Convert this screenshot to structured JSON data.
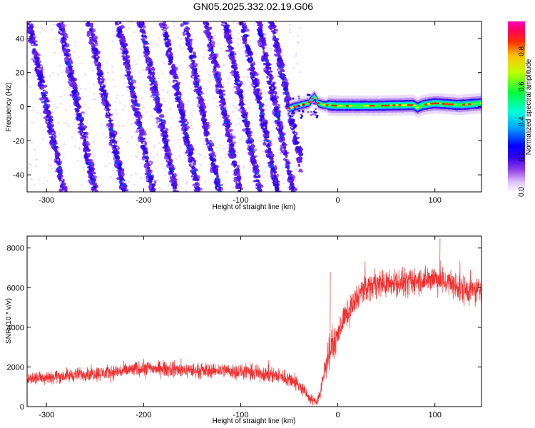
{
  "figure_title": "GN05.2025.332.02.19.G06",
  "chart_data": [
    {
      "id": "spectrogram",
      "type": "heatmap",
      "title": "",
      "xlabel": "Height of straight line (km)",
      "ylabel": "Frequency (Hz)",
      "xlim": [
        -320,
        148
      ],
      "ylim": [
        -50,
        50
      ],
      "xticks": [
        -300,
        -200,
        -100,
        0,
        100
      ],
      "yticks": [
        -40,
        -20,
        0,
        20,
        40
      ],
      "xtick_labels": [
        "-300",
        "-200",
        "-100",
        "0",
        "100"
      ],
      "ytick_labels": [
        "-40",
        "-20",
        "0",
        "20",
        "40"
      ],
      "colorbar": {
        "label": "Normalized spectral amplitude",
        "range": [
          0,
          0.97
        ],
        "ticks": [
          0,
          0.2,
          0.4,
          0.6,
          0.8
        ],
        "tick_labels": [
          "0.0",
          "0.2",
          "0.4",
          "0.6",
          "0.8"
        ],
        "colors": [
          "#ffffff",
          "#dcbdfa",
          "#9040e8",
          "#3800f0",
          "#0000ff",
          "#00d0ff",
          "#00ff40",
          "#e0ff00",
          "#ff2000",
          "#ff00aa"
        ]
      },
      "diagonal_stripes": {
        "description_of_pattern": "slanted interference fringes",
        "x_range": [
          -320,
          -38
        ],
        "slope_km_per_hz": -0.36,
        "stripe_x_at_zero_hz": [
          -300,
          -268,
          -238,
          -208,
          -185,
          -162,
          -140,
          -118,
          -98,
          -80,
          -64,
          -50
        ]
      },
      "direct_signal": {
        "x_range": [
          -50,
          148
        ],
        "center_hz": [
          [
            -50,
            -1
          ],
          [
            -38,
            1
          ],
          [
            -30,
            2
          ],
          [
            -24,
            6
          ],
          [
            -20,
            2
          ],
          [
            -15,
            1
          ],
          [
            0,
            0.5
          ],
          [
            40,
            0.5
          ],
          [
            78,
            1
          ],
          [
            82,
            -0.5
          ],
          [
            88,
            1
          ],
          [
            100,
            2
          ],
          [
            125,
            1
          ],
          [
            148,
            2
          ]
        ]
      }
    },
    {
      "id": "snr",
      "type": "line",
      "title": "",
      "xlabel": "Height of straight line (km)",
      "ylabel": "SNR (10 * v/v)",
      "xlim": [
        -320,
        148
      ],
      "ylim": [
        0,
        8600
      ],
      "xticks": [
        -300,
        -200,
        -100,
        0,
        100
      ],
      "yticks": [
        0,
        2000,
        4000,
        6000,
        8000
      ],
      "xtick_labels": [
        "-300",
        "-200",
        "-100",
        "0",
        "100"
      ],
      "ytick_labels": [
        "0",
        "2000",
        "4000",
        "6000",
        "8000"
      ],
      "series": [
        {
          "name": "SNR",
          "color": "#f03030",
          "envelope_x": [
            -320,
            -300,
            -280,
            -260,
            -240,
            -220,
            -200,
            -180,
            -160,
            -140,
            -120,
            -100,
            -80,
            -60,
            -45,
            -35,
            -28,
            -22,
            -18,
            -15,
            -12,
            -10,
            -8,
            -6,
            -4,
            -2,
            0,
            5,
            10,
            15,
            20,
            25,
            30,
            35,
            40,
            50,
            60,
            70,
            80,
            90,
            100,
            110,
            120,
            130,
            140,
            148
          ],
          "envelope_y": [
            1400,
            1500,
            1550,
            1650,
            1700,
            1800,
            1950,
            1900,
            1850,
            1800,
            1850,
            1750,
            1700,
            1550,
            1300,
            800,
            350,
            250,
            700,
            1400,
            2200,
            2700,
            2900,
            3200,
            3100,
            3350,
            3700,
            4300,
            4700,
            5100,
            5500,
            5800,
            6000,
            6100,
            6250,
            6200,
            6250,
            6200,
            6350,
            6400,
            6500,
            6300,
            6100,
            5900,
            5800,
            5900
          ],
          "noise_amplitude": [
            500,
            500,
            500,
            500,
            550,
            550,
            550,
            550,
            550,
            550,
            550,
            550,
            600,
            600,
            600,
            500,
            350,
            300,
            500,
            800,
            1000,
            1100,
            1100,
            1100,
            1000,
            1000,
            1000,
            1000,
            1000,
            1000,
            1000,
            1000,
            1000,
            1000,
            1000,
            1000,
            1000,
            1000,
            1000,
            1000,
            1100,
            1100,
            1100,
            1100,
            1100,
            1100
          ]
        }
      ],
      "annotations": {
        "peak_spike_x": -8,
        "peak_spike_y": 6800,
        "max_spike_x": 105,
        "max_spike_y": 8500
      }
    }
  ]
}
